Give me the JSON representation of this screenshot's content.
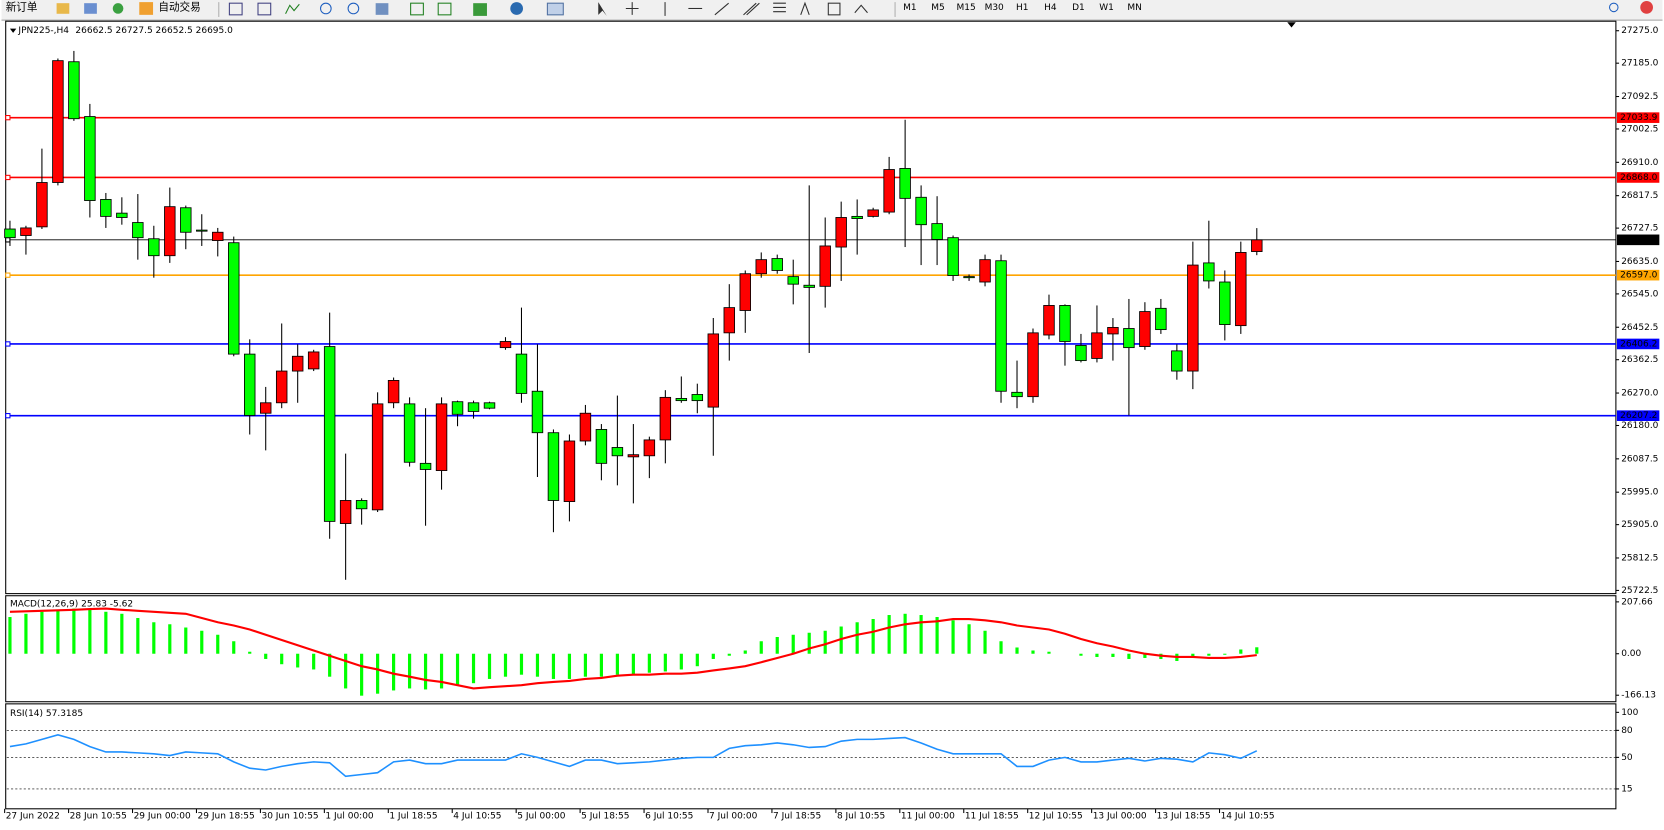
{
  "toolbar": {
    "new_order": "新订单",
    "auto_trading": "自动交易",
    "timeframes": [
      "M1",
      "M5",
      "M15",
      "M30",
      "H1",
      "H4",
      "D1",
      "W1",
      "MN"
    ]
  },
  "chart_data": [
    {
      "type": "candlestick",
      "title": "JPN225-,H4",
      "subtitle": "26662.5 26727.5 26652.5 26695.0",
      "categories": [
        "27 Jun 2022",
        null,
        null,
        null,
        "28 Jun 10:55",
        null,
        null,
        null,
        "29 Jun 00:00",
        null,
        null,
        null,
        "29 Jun 18:55",
        null,
        null,
        null,
        "30 Jun 10:55",
        null,
        null,
        null,
        "1 Jul 00:00",
        null,
        null,
        null,
        "1 Jul 18:55",
        null,
        null,
        null,
        "4 Jul 10:55",
        null,
        null,
        null,
        "5 Jul 00:00",
        null,
        null,
        null,
        "5 Jul 18:55",
        null,
        null,
        null,
        "6 Jul 10:55",
        null,
        null,
        null,
        "7 Jul 00:00",
        null,
        null,
        null,
        "7 Jul 18:55",
        null,
        null,
        null,
        "8 Jul 10:55",
        null,
        null,
        null,
        "11 Jul 00:00",
        null,
        null,
        null,
        "11 Jul 18:55",
        null,
        null,
        null,
        "12 Jul 10:55",
        null,
        null,
        null,
        "13 Jul 00:00",
        null,
        null,
        null,
        "13 Jul 18:55",
        null,
        null,
        null,
        "14 Jul 10:55",
        null,
        null
      ],
      "open": [
        26725,
        26707,
        26731,
        26854,
        27189,
        27037,
        26807,
        26769,
        26743,
        26698,
        26651,
        26784,
        26722,
        26693,
        26687,
        26378,
        26214,
        26243,
        26331,
        26337,
        26399,
        25908,
        25972,
        25946,
        26243,
        26240,
        26075,
        26055,
        26246,
        26243,
        26243,
        26396,
        26378,
        26275,
        26160,
        25969,
        26137,
        26169,
        26119,
        26093,
        26096,
        26140,
        26255,
        26266,
        26231,
        26437,
        26499,
        26601,
        26643,
        26593,
        26569,
        26566,
        26675,
        26760,
        26760,
        26772,
        26893,
        26813,
        26740,
        26701,
        26593,
        26578,
        26637,
        26272,
        26260,
        26431,
        26513,
        26402,
        26366,
        26434,
        26449,
        26399,
        26505,
        26387,
        26331,
        26631,
        26578,
        26457,
        26662.5
      ],
      "high": [
        26748,
        26734,
        26948,
        27198,
        27219,
        27072,
        26825,
        26813,
        26822,
        26734,
        26840,
        26790,
        26766,
        26728,
        26704,
        26419,
        26287,
        26463,
        26405,
        26390,
        26493,
        26102,
        25978,
        26272,
        26313,
        26258,
        26228,
        26258,
        26249,
        26249,
        26246,
        26425,
        26507,
        26405,
        26169,
        26155,
        26237,
        26184,
        26263,
        26184,
        26149,
        26278,
        26316,
        26296,
        26478,
        26572,
        26610,
        26660,
        26654,
        26640,
        26846,
        26757,
        26801,
        26807,
        26784,
        26925,
        27028,
        26846,
        26816,
        26707,
        26599,
        26654,
        26654,
        26360,
        26449,
        26543,
        26516,
        26434,
        26513,
        26478,
        26531,
        26522,
        26531,
        26405,
        26690,
        26748,
        26610,
        26690,
        26727.5
      ],
      "low": [
        26678,
        26654,
        26725,
        26846,
        27025,
        26757,
        26728,
        26737,
        26640,
        26590,
        26631,
        26669,
        26678,
        26649,
        26372,
        26155,
        26111,
        26228,
        26243,
        26331,
        25866,
        25752,
        25905,
        25940,
        26228,
        26066,
        25902,
        26002,
        26178,
        26199,
        26225,
        26390,
        26243,
        26037,
        25884,
        25914,
        26125,
        26028,
        26014,
        25964,
        26034,
        26075,
        26243,
        26214,
        26096,
        26360,
        26437,
        26590,
        26601,
        26516,
        26381,
        26507,
        26581,
        26654,
        26757,
        26766,
        26675,
        26625,
        26625,
        26581,
        26581,
        26566,
        26243,
        26228,
        26243,
        26419,
        26346,
        26355,
        26355,
        26360,
        26208,
        26390,
        26434,
        26307,
        26281,
        26560,
        26416,
        26434,
        26652.5
      ],
      "close": [
        26701,
        26728,
        26854,
        27192,
        27031,
        26804,
        26760,
        26757,
        26701,
        26651,
        26787,
        26716,
        26719,
        26716,
        26378,
        26208,
        26243,
        26331,
        26372,
        26384,
        25914,
        25972,
        25949,
        26240,
        26305,
        26078,
        26058,
        26240,
        26211,
        26219,
        26228,
        26413,
        26269,
        26160,
        25972,
        26137,
        26214,
        26075,
        26096,
        26099,
        26140,
        26258,
        26249,
        26249,
        26434,
        26507,
        26601,
        26640,
        26610,
        26572,
        26563,
        26678,
        26757,
        26754,
        26778,
        26890,
        26810,
        26737,
        26696,
        26596,
        26590,
        26640,
        26275,
        26260,
        26437,
        26513,
        26413,
        26360,
        26437,
        26452,
        26396,
        26496,
        26446,
        26331,
        26625,
        26581,
        26460,
        26660,
        26695
      ],
      "up_color": "#ff0000",
      "down_color": "#00ff00",
      "ylim": [
        25716.6,
        27298.5
      ],
      "yticks": [
        {
          "value": 27275,
          "label": "27275.0"
        },
        {
          "value": 27185,
          "label": "27185.0"
        },
        27092.5,
        27002.5,
        {
          "value": 26910,
          "label": "26910.0"
        },
        26817.5,
        26727.5,
        {
          "value": 26635,
          "label": "26635.0"
        },
        {
          "value": 26545,
          "label": "26545.0"
        },
        26452.5,
        26362.5,
        {
          "value": 26270,
          "label": "26270.0"
        },
        {
          "value": 26180,
          "label": "26180.0"
        },
        26087.5,
        {
          "value": 25995,
          "label": "25995.0"
        },
        {
          "value": 25905,
          "label": "25905.0"
        },
        25812.5,
        25722.5
      ],
      "levels": [
        {
          "value": 27033.9,
          "color": "#ff0000"
        },
        {
          "value": 26868,
          "label": "26868.0",
          "color": "#ff0000"
        },
        {
          "value": 26695,
          "label": "26695.0",
          "color": "#000000"
        },
        {
          "value": 26597,
          "label": "26597.0",
          "color": "#ffa500"
        },
        {
          "value": 26406.2,
          "color": "#0000ff"
        },
        {
          "value": 26207.2,
          "color": "#0000ff"
        }
      ]
    },
    {
      "type": "macd",
      "title": "MACD(12,26,9) 25.83 -5.62",
      "series": [
        {
          "kind": "bar",
          "color": "#00ff00",
          "values": [
            147,
            160,
            168,
            176,
            181,
            176,
            168,
            160,
            143,
            126,
            118,
            105,
            92,
            76,
            50,
            8,
            -21,
            -42,
            -55,
            -63,
            -92,
            -139,
            -168,
            -160,
            -147,
            -139,
            -143,
            -139,
            -126,
            -118,
            -101,
            -92,
            -84,
            -92,
            -101,
            -101,
            -92,
            -92,
            -84,
            -84,
            -76,
            -71,
            -63,
            -50,
            -21,
            -8,
            13,
            50,
            67,
            76,
            84,
            92,
            109,
            126,
            139,
            155,
            160,
            155,
            147,
            134,
            118,
            92,
            50,
            25,
            13,
            8,
            0,
            -8,
            -13,
            -13,
            -21,
            -17,
            -21,
            -29,
            -17,
            -8,
            -4,
            17,
            25.83
          ]
        },
        {
          "kind": "line",
          "color": "#ff0000",
          "values": [
            168,
            170,
            172,
            174,
            176,
            179,
            181,
            176,
            172,
            168,
            164,
            160,
            143,
            126,
            113,
            97,
            76,
            55,
            34,
            13,
            -8,
            -29,
            -50,
            -63,
            -80,
            -92,
            -105,
            -113,
            -126,
            -139,
            -134,
            -130,
            -126,
            -118,
            -113,
            -109,
            -101,
            -97,
            -88,
            -84,
            -84,
            -80,
            -80,
            -76,
            -67,
            -59,
            -50,
            -34,
            -17,
            0,
            21,
            38,
            59,
            76,
            88,
            105,
            118,
            126,
            130,
            139,
            139,
            134,
            126,
            113,
            105,
            97,
            80,
            59,
            42,
            29,
            13,
            0,
            -8,
            -13,
            -13,
            -17,
            -17,
            -13,
            -5.62
          ]
        }
      ],
      "ylim": [
        -188,
        228
      ],
      "yticks": [
        207.66,
        {
          "value": 0,
          "label": "0.00"
        },
        -166.13
      ]
    },
    {
      "type": "line",
      "title": "RSI(14) 57.3185",
      "color": "#1e90ff",
      "values": [
        62,
        65,
        70,
        75,
        70,
        62,
        56,
        56,
        55,
        54,
        52,
        56,
        55,
        54,
        45,
        38,
        36,
        40,
        43,
        45,
        44,
        29,
        31,
        33,
        45,
        47,
        43,
        43,
        47,
        47,
        47,
        47,
        54,
        50,
        45,
        40,
        47,
        47,
        43,
        44,
        45,
        47,
        49,
        50,
        50,
        60,
        63,
        64,
        66,
        64,
        61,
        62,
        68,
        70,
        70,
        71,
        72,
        66,
        59,
        54,
        54,
        54,
        54,
        40,
        40,
        47,
        50,
        45,
        45,
        47,
        49,
        46,
        49,
        48,
        45,
        55,
        53,
        49,
        57.3185
      ],
      "ylim": [
        0,
        100
      ],
      "yticks": [
        15,
        50,
        80,
        100
      ]
    }
  ]
}
